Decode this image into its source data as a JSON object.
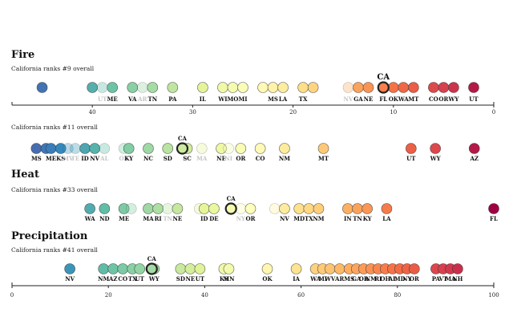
{
  "highlight_state": "CA",
  "chart_data": [
    {
      "type": "scatter",
      "title": "Fire",
      "subtitle": "California ranks #9 overall",
      "xlim": [
        48,
        0
      ],
      "ticks": [
        40,
        30,
        20,
        10,
        0
      ],
      "ca": 11,
      "ca_big": true,
      "points": [
        {
          "x": 45,
          "label": ""
        },
        {
          "x": 40,
          "label": ""
        },
        {
          "x": 39,
          "label": "UT",
          "faint": true
        },
        {
          "x": 38,
          "label": "ME"
        },
        {
          "x": 36,
          "label": "VA"
        },
        {
          "x": 35,
          "label": "AR",
          "faint": true
        },
        {
          "x": 34,
          "label": "TN"
        },
        {
          "x": 32,
          "label": "PA"
        },
        {
          "x": 29,
          "label": "IL"
        },
        {
          "x": 27,
          "label": "WI"
        },
        {
          "x": 26,
          "label": "MO"
        },
        {
          "x": 25,
          "label": "MI"
        },
        {
          "x": 23,
          "label": ""
        },
        {
          "x": 22,
          "label": "MS"
        },
        {
          "x": 21,
          "label": "LA"
        },
        {
          "x": 19,
          "label": "TX"
        },
        {
          "x": 18,
          "label": ""
        },
        {
          "x": 14.5,
          "label": "NV",
          "faint": true
        },
        {
          "x": 13.5,
          "label": "GA"
        },
        {
          "x": 12.5,
          "label": "NE"
        },
        {
          "x": 11,
          "label": "FL"
        },
        {
          "x": 10,
          "label": "OK"
        },
        {
          "x": 9,
          "label": "WA"
        },
        {
          "x": 8,
          "label": "MT"
        },
        {
          "x": 6,
          "label": "CO"
        },
        {
          "x": 5,
          "label": "OR"
        },
        {
          "x": 4,
          "label": "WY"
        },
        {
          "x": 2,
          "label": "UT"
        }
      ]
    },
    {
      "type": "scatter",
      "title": "",
      "subtitle": "California ranks #11 overall",
      "xlim": [
        1,
        100
      ],
      "ticks": [],
      "ca": 36,
      "ca_big": false,
      "points": [
        {
          "x": 6,
          "label": "MS"
        },
        {
          "x": 8,
          "label": ""
        },
        {
          "x": 9,
          "label": "ME"
        },
        {
          "x": 11,
          "label": "KS"
        },
        {
          "x": 12.5,
          "label": "MV",
          "faint": true
        },
        {
          "x": 14,
          "label": "TE",
          "faint": true
        },
        {
          "x": 16,
          "label": "ID"
        },
        {
          "x": 18,
          "label": "NV"
        },
        {
          "x": 20,
          "label": "AL",
          "faint": true
        },
        {
          "x": 24,
          "label": "OK",
          "faint": true
        },
        {
          "x": 25,
          "label": "KY"
        },
        {
          "x": 29,
          "label": "NC"
        },
        {
          "x": 33,
          "label": "SD"
        },
        {
          "x": 37,
          "label": "SC"
        },
        {
          "x": 40,
          "label": "MA",
          "faint": true
        },
        {
          "x": 44,
          "label": "NE"
        },
        {
          "x": 45.5,
          "label": "NI",
          "faint": true
        },
        {
          "x": 48,
          "label": "OR"
        },
        {
          "x": 52,
          "label": "CO"
        },
        {
          "x": 57,
          "label": "NM"
        },
        {
          "x": 65,
          "label": "MT"
        },
        {
          "x": 83,
          "label": "UT"
        },
        {
          "x": 88,
          "label": "WY"
        },
        {
          "x": 96,
          "label": "AZ"
        }
      ]
    },
    {
      "type": "scatter",
      "title": "Heat",
      "subtitle": "California ranks #33 overall",
      "xlim": [
        1,
        100
      ],
      "ticks": [],
      "ca": 46,
      "ca_big": false,
      "points": [
        {
          "x": 17,
          "label": "WA"
        },
        {
          "x": 20,
          "label": "ND"
        },
        {
          "x": 24,
          "label": "ME"
        },
        {
          "x": 25.5,
          "label": "",
          "faint": true
        },
        {
          "x": 29,
          "label": "MA"
        },
        {
          "x": 31,
          "label": "RI"
        },
        {
          "x": 33,
          "label": "TN",
          "faint": true
        },
        {
          "x": 35,
          "label": "NE"
        },
        {
          "x": 39.5,
          "label": "",
          "faint": true
        },
        {
          "x": 40.5,
          "label": "ID"
        },
        {
          "x": 42.5,
          "label": "DE"
        },
        {
          "x": 48,
          "label": "NY",
          "faint": true
        },
        {
          "x": 50,
          "label": "OR"
        },
        {
          "x": 55,
          "label": "",
          "faint": true
        },
        {
          "x": 57,
          "label": "NV"
        },
        {
          "x": 60,
          "label": "MD"
        },
        {
          "x": 62,
          "label": "TX"
        },
        {
          "x": 64,
          "label": "NM"
        },
        {
          "x": 70,
          "label": "IN"
        },
        {
          "x": 72,
          "label": "TN"
        },
        {
          "x": 74,
          "label": "KY"
        },
        {
          "x": 78,
          "label": "LA"
        },
        {
          "x": 100,
          "label": "FL"
        }
      ]
    },
    {
      "type": "scatter",
      "title": "Precipitation",
      "subtitle": "California ranks #41 overall",
      "xlim": [
        0,
        100
      ],
      "ticks": [
        0,
        20,
        40,
        60,
        80,
        100
      ],
      "ca": 29,
      "ca_big": false,
      "points": [
        {
          "x": 12,
          "label": "NV"
        },
        {
          "x": 19,
          "label": "NM"
        },
        {
          "x": 21,
          "label": "AZ"
        },
        {
          "x": 23,
          "label": "CO"
        },
        {
          "x": 25,
          "label": "TX"
        },
        {
          "x": 26.5,
          "label": "UT"
        },
        {
          "x": 29.5,
          "label": "WY"
        },
        {
          "x": 35,
          "label": "SD"
        },
        {
          "x": 37,
          "label": "NE"
        },
        {
          "x": 39,
          "label": "UT"
        },
        {
          "x": 44,
          "label": "KS"
        },
        {
          "x": 45,
          "label": "MN"
        },
        {
          "x": 53,
          "label": "OK"
        },
        {
          "x": 59,
          "label": "IA"
        },
        {
          "x": 63,
          "label": "WA"
        },
        {
          "x": 64.5,
          "label": "MI"
        },
        {
          "x": 66,
          "label": "WV"
        },
        {
          "x": 68,
          "label": "AR"
        },
        {
          "x": 70,
          "label": "MS"
        },
        {
          "x": 71.5,
          "label": "GA"
        },
        {
          "x": 73,
          "label": "OR"
        },
        {
          "x": 74.5,
          "label": "NM"
        },
        {
          "x": 76,
          "label": "RI"
        },
        {
          "x": 77.5,
          "label": "OH"
        },
        {
          "x": 79,
          "label": "AL"
        },
        {
          "x": 80.5,
          "label": "MD"
        },
        {
          "x": 82,
          "label": "NY"
        },
        {
          "x": 83.5,
          "label": "OR"
        },
        {
          "x": 88,
          "label": "PA"
        },
        {
          "x": 89.5,
          "label": "VT"
        },
        {
          "x": 91,
          "label": "MA"
        },
        {
          "x": 92.5,
          "label": "NH"
        }
      ]
    }
  ]
}
